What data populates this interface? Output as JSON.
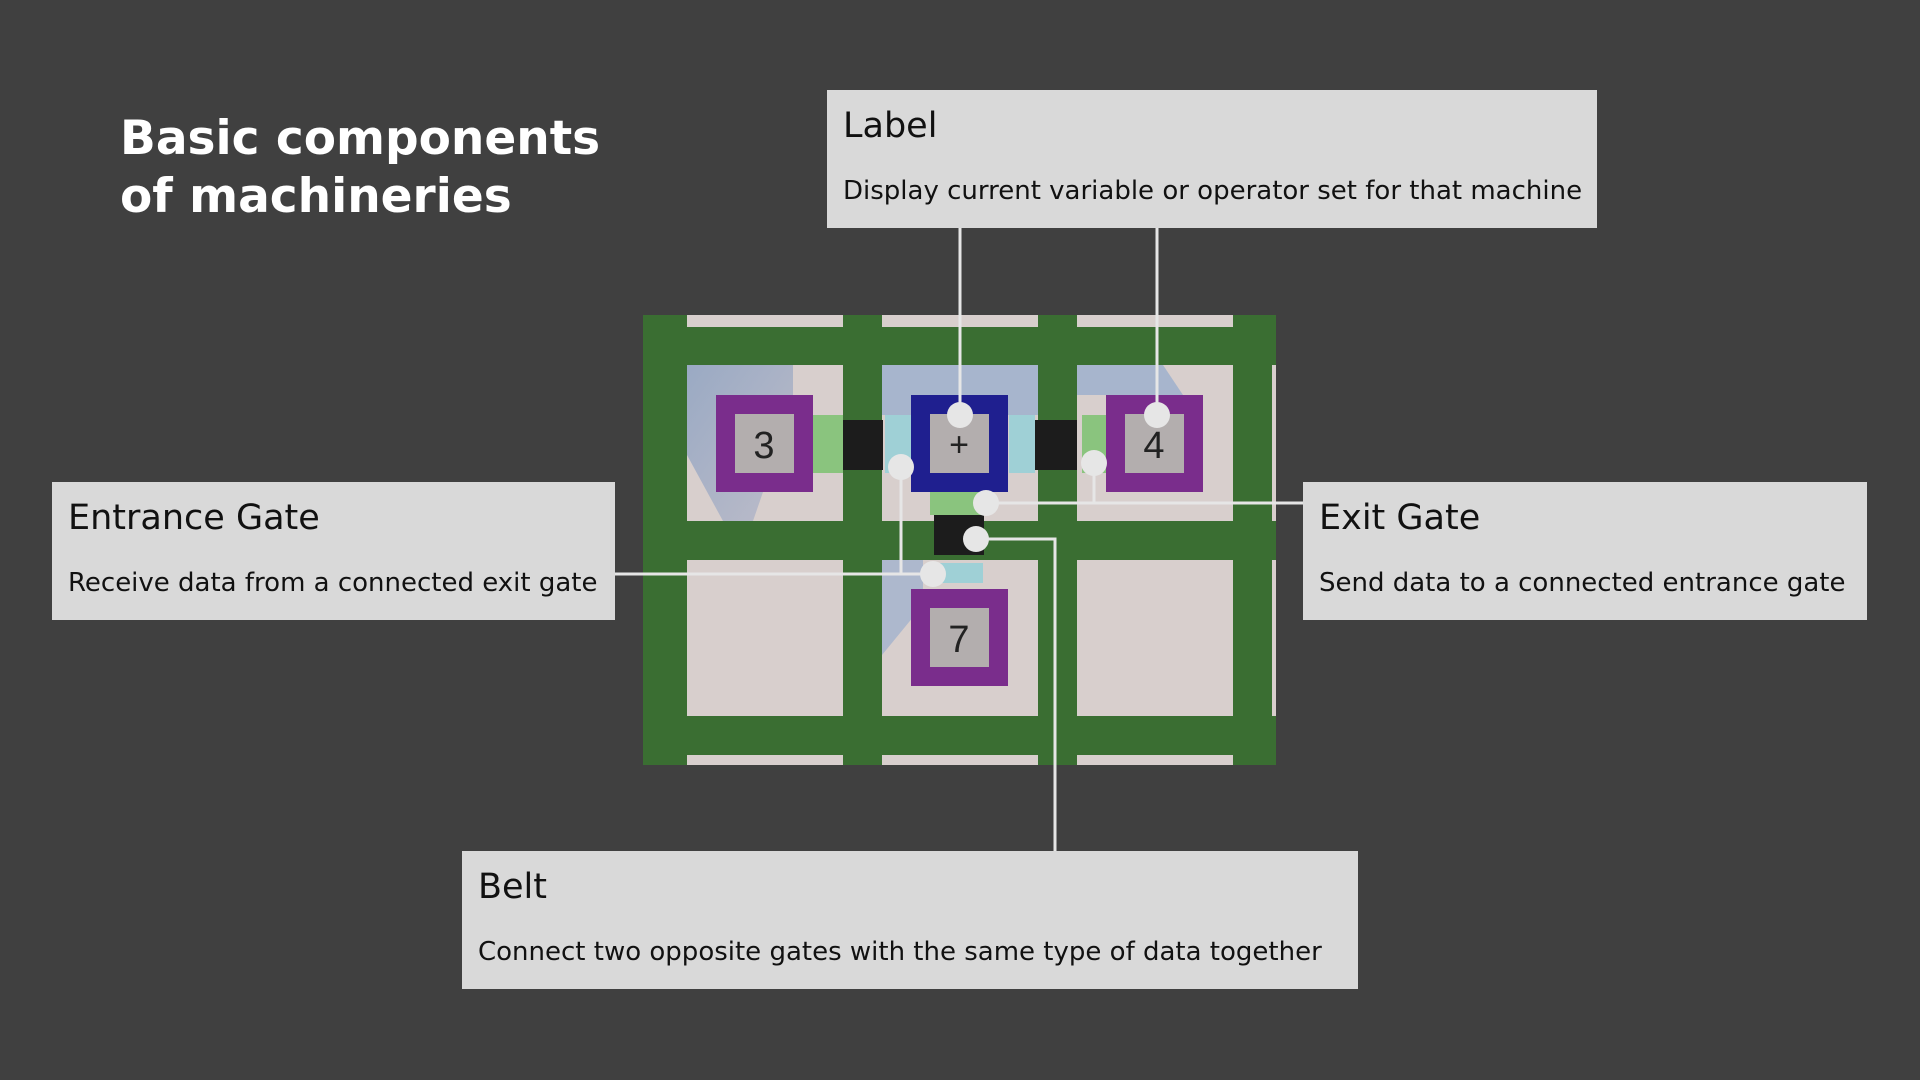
{
  "title": {
    "line1": "Basic components",
    "line2": "of machineries"
  },
  "callouts": {
    "label": {
      "title": "Label",
      "description": "Display current variable or operator set for that machine"
    },
    "entrance_gate": {
      "title": "Entrance Gate",
      "description": "Receive data from a connected exit gate"
    },
    "exit_gate": {
      "title": "Exit Gate",
      "description": "Send data to a connected entrance gate"
    },
    "belt": {
      "title": "Belt",
      "description": "Connect two opposite gates with the same type of data together"
    }
  },
  "machines": {
    "left": "3",
    "center": "+",
    "right": "4",
    "bottom": "7"
  },
  "colors": {
    "background": "#404040",
    "callout_bg": "#d9d9d9",
    "grass": "#3a6e32",
    "tile": "#d8cfcd",
    "variable_machine": "#7a2d8c",
    "operator_machine": "#1f1f8f",
    "entrance_gate": "#9fd0d6",
    "exit_gate": "#8ac47e",
    "belt": "#1c1c1c",
    "leader_line": "#e6e6e6"
  }
}
